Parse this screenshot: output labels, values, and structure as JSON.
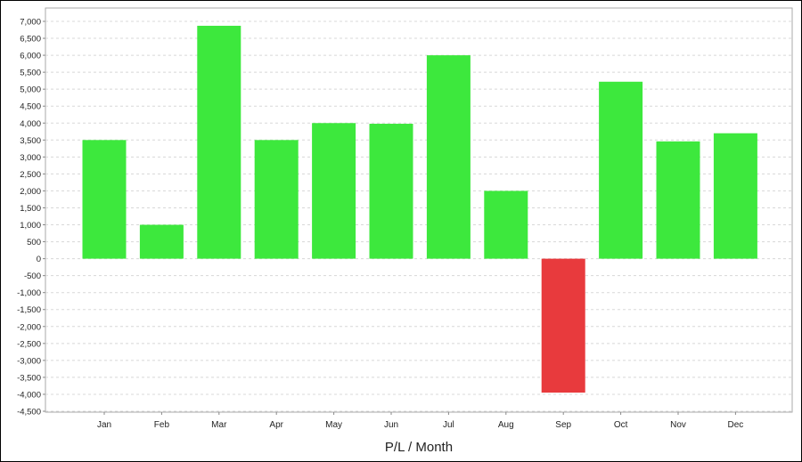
{
  "chart_data": {
    "type": "bar",
    "title": "",
    "xlabel": "P/L / Month",
    "ylabel": "",
    "categories": [
      "Jan",
      "Feb",
      "Mar",
      "Apr",
      "May",
      "Jun",
      "Jul",
      "Aug",
      "Sep",
      "Oct",
      "Nov",
      "Dec"
    ],
    "values": [
      3500,
      1000,
      6870,
      3500,
      4000,
      3980,
      6000,
      2000,
      -3950,
      5220,
      3460,
      3700
    ],
    "ylim": [
      -4500,
      7000
    ],
    "y_ticks": [
      "7,000",
      "6,500",
      "6,000",
      "5,500",
      "5,000",
      "4,500",
      "4,000",
      "3,500",
      "3,000",
      "2,500",
      "2,000",
      "1,500",
      "1,000",
      "500",
      "0",
      "-500",
      "-1,000",
      "-1,500",
      "-2,000",
      "-2,500",
      "-3,000",
      "-3,500",
      "-4,000",
      "-4,500"
    ],
    "y_tick_values": [
      7000,
      6500,
      6000,
      5500,
      5000,
      4500,
      4000,
      3500,
      3000,
      2500,
      2000,
      1500,
      1000,
      500,
      0,
      -500,
      -1000,
      -1500,
      -2000,
      -2500,
      -3000,
      -3500,
      -4000,
      -4500
    ],
    "grid": true,
    "legend": "none",
    "colors": {
      "positive": "#3de83d",
      "negative": "#e83a3d",
      "grid": "#d8d8d8",
      "axis": "#888888"
    }
  }
}
